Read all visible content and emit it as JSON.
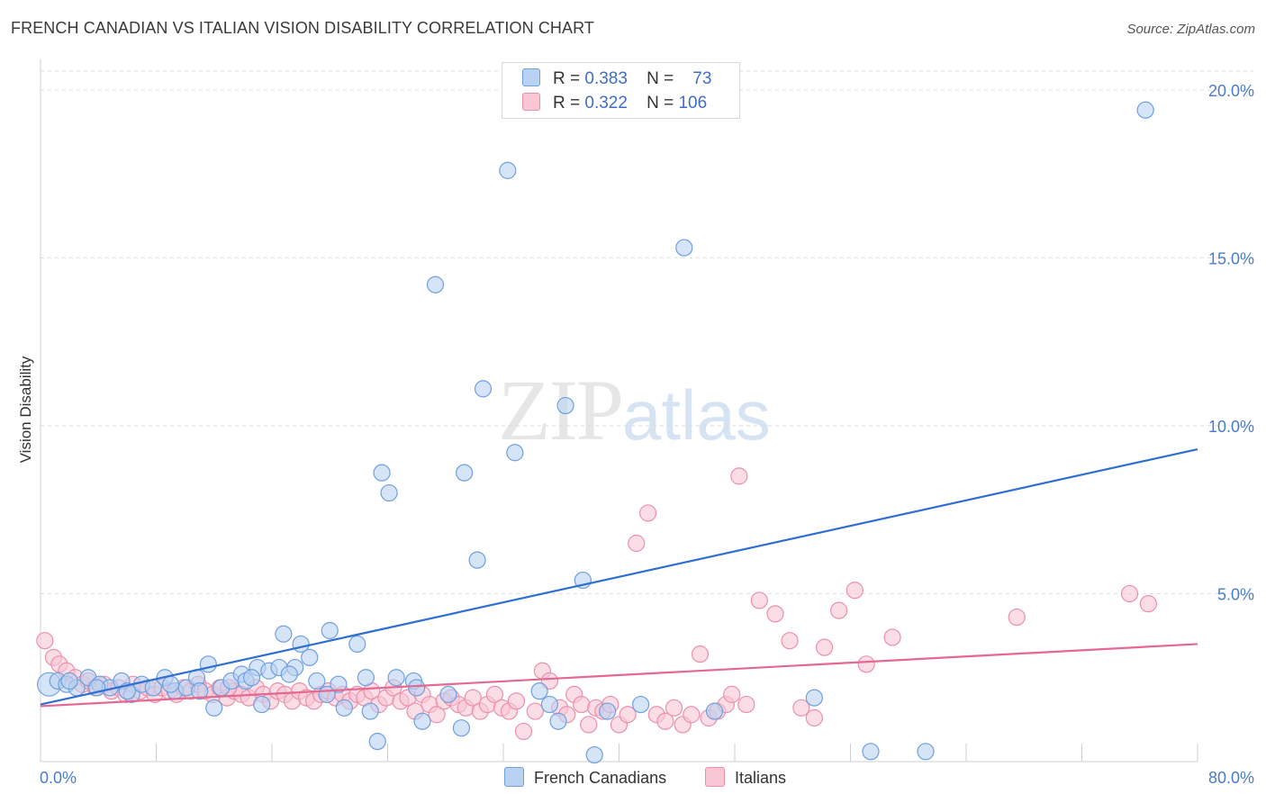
{
  "header": {
    "title": "FRENCH CANADIAN VS ITALIAN VISION DISABILITY CORRELATION CHART",
    "source": "Source: ZipAtlas.com"
  },
  "watermark": {
    "zip": "ZIP",
    "atlas": "atlas"
  },
  "legend": {
    "rows": [
      {
        "r_label": "R =",
        "r_value": "0.383",
        "n_label": "N =",
        "n_value": "73",
        "color": "#8fb6e8"
      },
      {
        "r_label": "R =",
        "r_value": "0.322",
        "n_label": "N =",
        "n_value": "106",
        "color": "#f4a8be"
      }
    ]
  },
  "bottom_legend": {
    "items": [
      "French Canadians",
      "Italians"
    ]
  },
  "colors": {
    "blue_fill": "#b9d2f2",
    "blue_stroke": "#6f9fdc",
    "blue_line": "#2f6fd0",
    "pink_fill": "#f9c6d4",
    "pink_stroke": "#ec8fab",
    "pink_line": "#e46891",
    "grid": "#dcdcdc",
    "tick_text": "#4a7cc9"
  },
  "chart_data": {
    "type": "scatter",
    "title": "FRENCH CANADIAN VS ITALIAN VISION DISABILITY CORRELATION CHART",
    "ylabel": "Vision Disability",
    "xlabel": "",
    "xlim": [
      0,
      80
    ],
    "ylim": [
      0,
      20.8
    ],
    "x_tick_labels": [
      "0.0%",
      "80.0%"
    ],
    "y_ticks": [
      5,
      10,
      15,
      20
    ],
    "y_tick_labels": [
      "5.0%",
      "10.0%",
      "15.0%",
      "20.0%"
    ],
    "grid": true,
    "legend_position": "top-center",
    "series": [
      {
        "name": "French Canadians",
        "R": 0.383,
        "N": 73,
        "trend": {
          "x": [
            0,
            80
          ],
          "y": [
            1.7,
            9.3
          ]
        },
        "points": [
          [
            0.6,
            2.3,
            2
          ],
          [
            1.2,
            2.4,
            1
          ],
          [
            1.8,
            2.3,
            1
          ],
          [
            2.5,
            2.2,
            1
          ],
          [
            3.3,
            2.5,
            1
          ],
          [
            4.1,
            2.3,
            1
          ],
          [
            4.8,
            2.2,
            1
          ],
          [
            5.6,
            2.4,
            1
          ],
          [
            6.3,
            2.0,
            1
          ],
          [
            7.0,
            2.3,
            1
          ],
          [
            7.8,
            2.2,
            1
          ],
          [
            8.6,
            2.5,
            1
          ],
          [
            9.3,
            2.1,
            1
          ],
          [
            10.1,
            2.2,
            1
          ],
          [
            10.8,
            2.5,
            1
          ],
          [
            11.6,
            2.9,
            1
          ],
          [
            12.0,
            1.6,
            1
          ],
          [
            12.5,
            2.2,
            1
          ],
          [
            13.2,
            2.4,
            1
          ],
          [
            13.9,
            2.6,
            1
          ],
          [
            14.2,
            2.4,
            1
          ],
          [
            15.0,
            2.8,
            1
          ],
          [
            15.3,
            1.7,
            1
          ],
          [
            15.8,
            2.7,
            1
          ],
          [
            16.5,
            2.8,
            1
          ],
          [
            16.8,
            3.8,
            1
          ],
          [
            17.6,
            2.8,
            1
          ],
          [
            18.0,
            3.5,
            1
          ],
          [
            18.6,
            3.1,
            1
          ],
          [
            19.1,
            2.4,
            1
          ],
          [
            20.0,
            3.9,
            1
          ],
          [
            20.6,
            2.3,
            1
          ],
          [
            21.0,
            1.6,
            1
          ],
          [
            21.9,
            3.5,
            1
          ],
          [
            22.5,
            2.5,
            1
          ],
          [
            22.8,
            1.5,
            1
          ],
          [
            23.3,
            0.6,
            1
          ],
          [
            23.6,
            8.6,
            1
          ],
          [
            24.1,
            8.0,
            1
          ],
          [
            24.6,
            2.5,
            1
          ],
          [
            25.8,
            2.4,
            1
          ],
          [
            26.4,
            1.2,
            1
          ],
          [
            27.3,
            14.2,
            1
          ],
          [
            28.2,
            2.0,
            1
          ],
          [
            29.1,
            1.0,
            1
          ],
          [
            29.3,
            8.6,
            1
          ],
          [
            30.2,
            6.0,
            1
          ],
          [
            30.6,
            11.1,
            1
          ],
          [
            32.3,
            17.6,
            1
          ],
          [
            32.8,
            9.2,
            1
          ],
          [
            35.2,
            1.7,
            1
          ],
          [
            35.8,
            1.2,
            1
          ],
          [
            36.3,
            10.6,
            1
          ],
          [
            37.5,
            5.4,
            1
          ],
          [
            38.3,
            0.2,
            1
          ],
          [
            39.2,
            1.5,
            1
          ],
          [
            41.5,
            1.7,
            1
          ],
          [
            44.5,
            15.3,
            1
          ],
          [
            46.6,
            1.5,
            1
          ],
          [
            53.5,
            1.9,
            1
          ],
          [
            57.4,
            0.3,
            1
          ],
          [
            61.2,
            0.3,
            1
          ],
          [
            76.4,
            19.4,
            1
          ],
          [
            2.0,
            2.4,
            1
          ],
          [
            3.9,
            2.2,
            1
          ],
          [
            6.0,
            2.1,
            1
          ],
          [
            9.0,
            2.3,
            1
          ],
          [
            11.0,
            2.1,
            1
          ],
          [
            14.6,
            2.5,
            1
          ],
          [
            19.8,
            2.0,
            1
          ],
          [
            34.5,
            2.1,
            1
          ],
          [
            26.0,
            2.2,
            1
          ],
          [
            17.2,
            2.6,
            1
          ]
        ]
      },
      {
        "name": "Italians",
        "R": 0.322,
        "N": 106,
        "trend": {
          "x": [
            0,
            80
          ],
          "y": [
            1.65,
            3.5
          ]
        },
        "points": [
          [
            0.3,
            3.6,
            1
          ],
          [
            0.9,
            3.1,
            1
          ],
          [
            1.3,
            2.9,
            1
          ],
          [
            1.8,
            2.7,
            1
          ],
          [
            2.4,
            2.5,
            1
          ],
          [
            2.9,
            2.3,
            1
          ],
          [
            3.3,
            2.4,
            1
          ],
          [
            3.8,
            2.2,
            1
          ],
          [
            4.4,
            2.3,
            1
          ],
          [
            4.9,
            2.1,
            1
          ],
          [
            5.4,
            2.2,
            1
          ],
          [
            5.9,
            2.0,
            1
          ],
          [
            6.4,
            2.3,
            1
          ],
          [
            6.9,
            2.1,
            1
          ],
          [
            7.4,
            2.2,
            1
          ],
          [
            7.9,
            2.0,
            1
          ],
          [
            8.4,
            2.2,
            1
          ],
          [
            8.9,
            2.1,
            1
          ],
          [
            9.4,
            2.0,
            1
          ],
          [
            9.9,
            2.2,
            1
          ],
          [
            10.4,
            2.1,
            1
          ],
          [
            10.9,
            2.3,
            1
          ],
          [
            11.4,
            2.1,
            1
          ],
          [
            11.9,
            2.0,
            1
          ],
          [
            12.4,
            2.2,
            1
          ],
          [
            12.9,
            1.9,
            1
          ],
          [
            13.4,
            2.1,
            1
          ],
          [
            13.9,
            2.0,
            1
          ],
          [
            14.4,
            1.9,
            1
          ],
          [
            14.9,
            2.2,
            1
          ],
          [
            15.4,
            2.0,
            1
          ],
          [
            15.9,
            1.8,
            1
          ],
          [
            16.4,
            2.1,
            1
          ],
          [
            16.9,
            2.0,
            1
          ],
          [
            17.4,
            1.8,
            1
          ],
          [
            17.9,
            2.1,
            1
          ],
          [
            18.4,
            1.9,
            1
          ],
          [
            18.9,
            1.8,
            1
          ],
          [
            19.4,
            2.0,
            1
          ],
          [
            19.9,
            2.1,
            1
          ],
          [
            20.4,
            1.9,
            1
          ],
          [
            20.9,
            2.0,
            1
          ],
          [
            21.4,
            1.8,
            1
          ],
          [
            21.9,
            2.0,
            1
          ],
          [
            22.4,
            1.9,
            1
          ],
          [
            22.9,
            2.1,
            1
          ],
          [
            23.4,
            1.7,
            1
          ],
          [
            23.9,
            1.9,
            1
          ],
          [
            24.4,
            2.2,
            1
          ],
          [
            24.9,
            1.8,
            1
          ],
          [
            25.4,
            1.9,
            1
          ],
          [
            25.9,
            1.5,
            1
          ],
          [
            26.4,
            2.0,
            1
          ],
          [
            26.9,
            1.7,
            1
          ],
          [
            27.4,
            1.4,
            1
          ],
          [
            27.9,
            1.8,
            1
          ],
          [
            28.4,
            1.9,
            1
          ],
          [
            28.9,
            1.7,
            1
          ],
          [
            29.4,
            1.6,
            1
          ],
          [
            29.9,
            1.9,
            1
          ],
          [
            30.4,
            1.5,
            1
          ],
          [
            30.9,
            1.7,
            1
          ],
          [
            31.4,
            2.0,
            1
          ],
          [
            31.9,
            1.6,
            1
          ],
          [
            32.4,
            1.5,
            1
          ],
          [
            32.9,
            1.8,
            1
          ],
          [
            33.4,
            0.9,
            1
          ],
          [
            34.2,
            1.5,
            1
          ],
          [
            34.7,
            2.7,
            1
          ],
          [
            35.2,
            2.4,
            1
          ],
          [
            35.9,
            1.6,
            1
          ],
          [
            36.4,
            1.4,
            1
          ],
          [
            36.9,
            2.0,
            1
          ],
          [
            37.4,
            1.7,
            1
          ],
          [
            37.9,
            1.1,
            1
          ],
          [
            38.4,
            1.6,
            1
          ],
          [
            38.9,
            1.5,
            1
          ],
          [
            39.4,
            1.7,
            1
          ],
          [
            40.0,
            1.1,
            1
          ],
          [
            40.6,
            1.4,
            1
          ],
          [
            41.2,
            6.5,
            1
          ],
          [
            42.0,
            7.4,
            1
          ],
          [
            42.6,
            1.4,
            1
          ],
          [
            43.2,
            1.2,
            1
          ],
          [
            43.8,
            1.6,
            1
          ],
          [
            44.4,
            1.1,
            1
          ],
          [
            45.0,
            1.4,
            1
          ],
          [
            45.6,
            3.2,
            1
          ],
          [
            46.2,
            1.3,
            1
          ],
          [
            46.8,
            1.5,
            1
          ],
          [
            47.4,
            1.7,
            1
          ],
          [
            47.8,
            2.0,
            1
          ],
          [
            48.3,
            8.5,
            1
          ],
          [
            48.8,
            1.7,
            1
          ],
          [
            49.7,
            4.8,
            1
          ],
          [
            50.8,
            4.4,
            1
          ],
          [
            51.8,
            3.6,
            1
          ],
          [
            52.6,
            1.6,
            1
          ],
          [
            53.5,
            1.3,
            1
          ],
          [
            54.2,
            3.4,
            1
          ],
          [
            55.2,
            4.5,
            1
          ],
          [
            56.3,
            5.1,
            1
          ],
          [
            57.1,
            2.9,
            1
          ],
          [
            58.9,
            3.7,
            1
          ],
          [
            67.5,
            4.3,
            1
          ],
          [
            75.3,
            5.0,
            1
          ],
          [
            76.6,
            4.7,
            1
          ],
          [
            13.0,
            2.2,
            1
          ]
        ]
      }
    ]
  }
}
